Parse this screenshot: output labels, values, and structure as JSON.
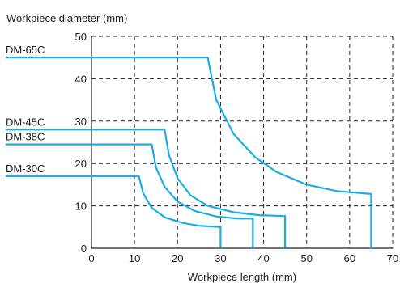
{
  "chart_data": {
    "type": "line",
    "title": "",
    "ylabel": "Workpiece diameter (mm)",
    "xlabel": "Workpiece length (mm)",
    "xlim": [
      0,
      70
    ],
    "ylim": [
      0,
      50
    ],
    "xticks": [
      0,
      10,
      20,
      30,
      40,
      50,
      60,
      70
    ],
    "yticks": [
      0,
      10,
      20,
      30,
      40,
      50
    ],
    "x_tick_labels": [
      "0",
      "10",
      "20",
      "30",
      "40",
      "50",
      "60",
      "70"
    ],
    "y_tick_labels": [
      "0",
      "10",
      "20",
      "30",
      "40",
      "50"
    ],
    "grid": true,
    "color": "#1aaee6",
    "series": [
      {
        "name": "DM-65C",
        "points": [
          [
            0,
            45
          ],
          [
            27,
            45
          ],
          [
            29,
            35
          ],
          [
            33,
            27
          ],
          [
            38,
            21.5
          ],
          [
            43,
            18
          ],
          [
            50,
            15
          ],
          [
            57,
            13.5
          ],
          [
            65,
            12.8
          ],
          [
            65,
            0
          ]
        ]
      },
      {
        "name": "DM-45C",
        "points": [
          [
            0,
            28
          ],
          [
            17,
            28
          ],
          [
            18,
            22
          ],
          [
            20,
            16.5
          ],
          [
            23,
            12.5
          ],
          [
            27,
            10
          ],
          [
            33,
            8.5
          ],
          [
            39,
            7.8
          ],
          [
            45,
            7.6
          ],
          [
            45,
            0
          ]
        ]
      },
      {
        "name": "DM-38C",
        "points": [
          [
            0,
            24.5
          ],
          [
            14,
            24.5
          ],
          [
            15,
            19
          ],
          [
            17,
            14.5
          ],
          [
            20,
            11
          ],
          [
            24,
            8.8
          ],
          [
            29,
            7.5
          ],
          [
            34,
            7
          ],
          [
            37.5,
            7
          ],
          [
            37.5,
            0
          ]
        ]
      },
      {
        "name": "DM-30C",
        "points": [
          [
            0,
            17
          ],
          [
            11,
            17
          ],
          [
            12,
            13
          ],
          [
            14,
            9.5
          ],
          [
            17,
            7.3
          ],
          [
            21,
            6
          ],
          [
            25,
            5.3
          ],
          [
            30,
            5
          ],
          [
            30,
            0
          ]
        ]
      }
    ]
  }
}
